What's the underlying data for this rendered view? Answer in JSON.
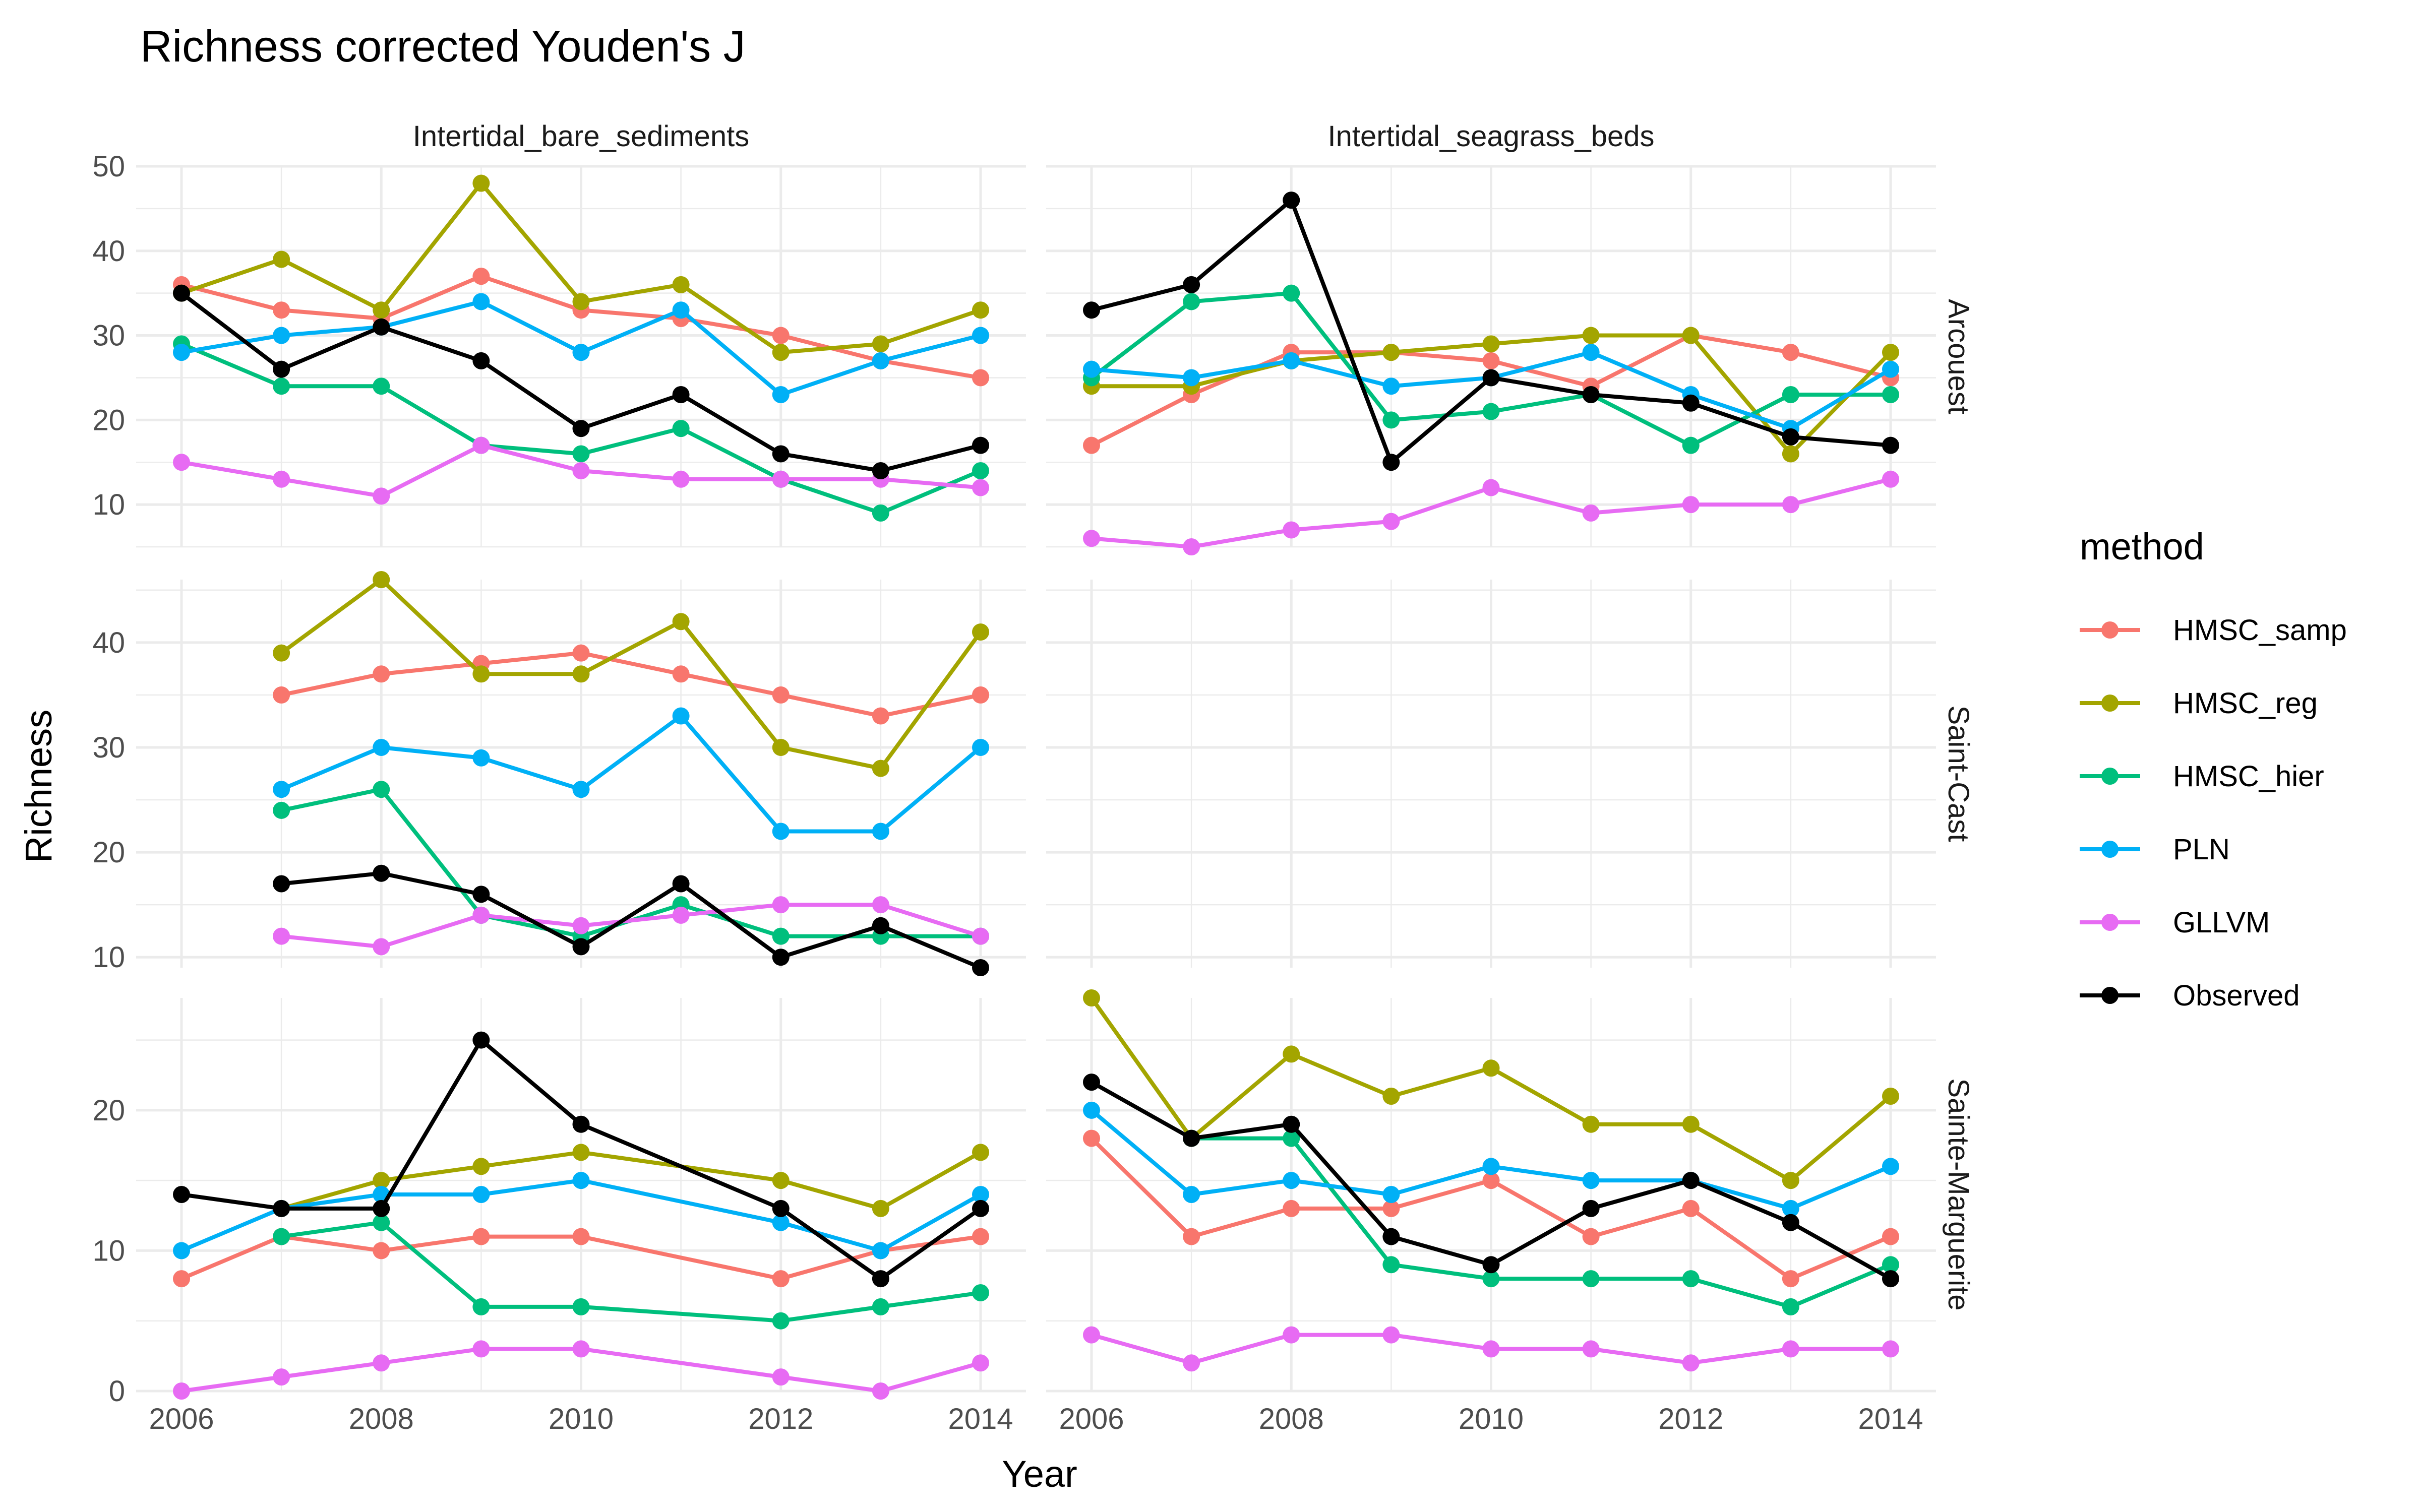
{
  "chart_data": {
    "type": "line",
    "title": "Richness corrected Youden's J",
    "xlabel": "Year",
    "ylabel": "Richness",
    "legend_title": "method",
    "legend_position": "right",
    "grid": true,
    "x": [
      2006,
      2007,
      2008,
      2009,
      2010,
      2011,
      2012,
      2013,
      2014
    ],
    "x_ticks": [
      2006,
      2008,
      2010,
      2012,
      2014
    ],
    "column_facets": [
      "Intertidal_bare_sediments",
      "Intertidal_seagrass_beds"
    ],
    "row_facets": [
      {
        "name": "Arcouest",
        "ylim": [
          5,
          50
        ],
        "ticks": [
          10,
          20,
          30,
          40,
          50
        ]
      },
      {
        "name": "Saint-Cast",
        "ylim": [
          9,
          46
        ],
        "ticks": [
          10,
          20,
          30,
          40
        ]
      },
      {
        "name": "Sainte-Marguerite",
        "ylim": [
          0,
          28
        ],
        "ticks": [
          0,
          10,
          20
        ]
      }
    ],
    "methods": [
      {
        "name": "HMSC_samp",
        "color": "#F8766D"
      },
      {
        "name": "HMSC_reg",
        "color": "#A3A500"
      },
      {
        "name": "HMSC_hier",
        "color": "#00BF7D"
      },
      {
        "name": "PLN",
        "color": "#00B0F6"
      },
      {
        "name": "GLLVM",
        "color": "#E76BF3"
      },
      {
        "name": "Observed",
        "color": "#000000"
      }
    ],
    "panels": [
      {
        "row": "Arcouest",
        "col": "Intertidal_bare_sediments",
        "series": {
          "HMSC_samp": [
            36,
            33,
            32,
            37,
            33,
            32,
            30,
            27,
            25
          ],
          "HMSC_reg": [
            35,
            39,
            33,
            48,
            34,
            36,
            28,
            29,
            33
          ],
          "HMSC_hier": [
            29,
            24,
            24,
            17,
            16,
            19,
            13,
            9,
            14
          ],
          "PLN": [
            28,
            30,
            31,
            34,
            28,
            33,
            23,
            27,
            30
          ],
          "GLLVM": [
            15,
            13,
            11,
            17,
            14,
            13,
            13,
            13,
            12
          ],
          "Observed": [
            35,
            26,
            31,
            27,
            19,
            23,
            16,
            14,
            17
          ]
        }
      },
      {
        "row": "Arcouest",
        "col": "Intertidal_seagrass_beds",
        "series": {
          "HMSC_samp": [
            17,
            23,
            28,
            28,
            27,
            24,
            30,
            28,
            25
          ],
          "HMSC_reg": [
            24,
            24,
            27,
            28,
            29,
            30,
            30,
            16,
            28
          ],
          "HMSC_hier": [
            25,
            34,
            35,
            20,
            21,
            23,
            17,
            23,
            23
          ],
          "PLN": [
            26,
            25,
            27,
            24,
            25,
            28,
            23,
            19,
            26
          ],
          "GLLVM": [
            6,
            5,
            7,
            8,
            12,
            9,
            10,
            10,
            13
          ],
          "Observed": [
            33,
            36,
            46,
            15,
            25,
            23,
            22,
            18,
            17
          ]
        }
      },
      {
        "row": "Saint-Cast",
        "col": "Intertidal_bare_sediments",
        "series": {
          "HMSC_samp": [
            null,
            35,
            37,
            38,
            39,
            37,
            35,
            33,
            35
          ],
          "HMSC_reg": [
            null,
            39,
            46,
            37,
            37,
            42,
            30,
            28,
            41
          ],
          "HMSC_hier": [
            null,
            24,
            26,
            14,
            12,
            15,
            12,
            12,
            12
          ],
          "PLN": [
            null,
            26,
            30,
            29,
            26,
            33,
            22,
            22,
            30
          ],
          "GLLVM": [
            null,
            12,
            11,
            14,
            13,
            14,
            15,
            15,
            12
          ],
          "Observed": [
            null,
            17,
            18,
            16,
            11,
            17,
            10,
            13,
            9
          ]
        }
      },
      {
        "row": "Saint-Cast",
        "col": "Intertidal_seagrass_beds",
        "series": {}
      },
      {
        "row": "Sainte-Marguerite",
        "col": "Intertidal_bare_sediments",
        "series": {
          "HMSC_samp": [
            8,
            11,
            10,
            11,
            11,
            null,
            8,
            10,
            11
          ],
          "HMSC_reg": [
            null,
            13,
            15,
            16,
            17,
            null,
            15,
            13,
            17
          ],
          "HMSC_hier": [
            null,
            11,
            12,
            6,
            6,
            null,
            5,
            6,
            7
          ],
          "PLN": [
            10,
            13,
            14,
            14,
            15,
            null,
            12,
            10,
            14
          ],
          "GLLVM": [
            0,
            1,
            2,
            3,
            3,
            null,
            1,
            0,
            2
          ],
          "Observed": [
            14,
            13,
            13,
            25,
            19,
            null,
            13,
            8,
            13
          ]
        }
      },
      {
        "row": "Sainte-Marguerite",
        "col": "Intertidal_seagrass_beds",
        "series": {
          "HMSC_samp": [
            18,
            11,
            13,
            13,
            15,
            11,
            13,
            8,
            11
          ],
          "HMSC_reg": [
            28,
            18,
            24,
            21,
            23,
            19,
            19,
            15,
            21
          ],
          "HMSC_hier": [
            null,
            18,
            18,
            9,
            8,
            8,
            8,
            6,
            9
          ],
          "PLN": [
            20,
            14,
            15,
            14,
            16,
            15,
            15,
            13,
            16
          ],
          "GLLVM": [
            4,
            2,
            4,
            4,
            3,
            3,
            2,
            3,
            3
          ],
          "Observed": [
            22,
            18,
            19,
            11,
            9,
            13,
            15,
            12,
            8
          ]
        }
      }
    ]
  }
}
